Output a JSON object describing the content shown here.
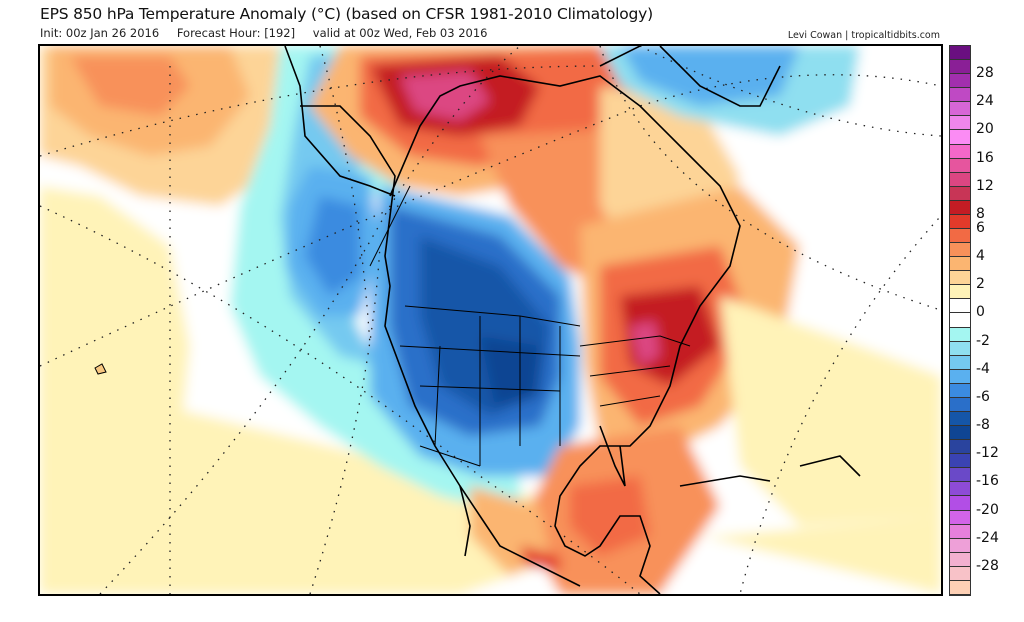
{
  "header": {
    "title": "EPS 850 hPa Temperature Anomaly (°C) (based on CFSR 1981-2010 Climatology)",
    "init": "Init: 00z Jan 26 2016",
    "forecast_hour": "Forecast Hour: [192]",
    "valid": "valid at 00z Wed, Feb 03 2016",
    "credit": "Levi Cowan | tropicaltidbits.com"
  },
  "map": {
    "projection": "polar-stereographic North America",
    "features": [
      "coastlines",
      "country-borders",
      "state-borders",
      "lat-lon-grid"
    ],
    "anomaly_regions": [
      {
        "name": "Alaska/Yukon warm anomaly",
        "peak": 14
      },
      {
        "name": "Western/Central US cold anomaly",
        "peak": -9
      },
      {
        "name": "Northeast Pacific cold anomaly",
        "peak": -7
      },
      {
        "name": "Eastern US warm anomaly",
        "peak": 10
      },
      {
        "name": "Gulf of Mexico warm anomaly",
        "peak": 6
      },
      {
        "name": "Greenland cold anomaly",
        "peak": -4
      }
    ]
  },
  "colorbar": {
    "bins": [
      {
        "color": "#6a0f80"
      },
      {
        "color": "#8a1f96"
      },
      {
        "color": "#a22fae"
      },
      {
        "color": "#bf49c4"
      },
      {
        "color": "#d766d6"
      },
      {
        "color": "#ef86ec"
      },
      {
        "color": "#fb8cf4"
      },
      {
        "color": "#f468c9"
      },
      {
        "color": "#e6559e"
      },
      {
        "color": "#dc4682"
      },
      {
        "color": "#c83556"
      },
      {
        "color": "#c41c24"
      },
      {
        "color": "#e33a2a"
      },
      {
        "color": "#f26a44"
      },
      {
        "color": "#f8915a"
      },
      {
        "color": "#fbb571"
      },
      {
        "color": "#fdd497"
      },
      {
        "color": "#fff3b8"
      },
      {
        "color": "#ffffff"
      },
      {
        "color": "#ffffff"
      },
      {
        "color": "#a4f6f1"
      },
      {
        "color": "#8fdff0"
      },
      {
        "color": "#74c9f0"
      },
      {
        "color": "#5ab0ef"
      },
      {
        "color": "#3b8be0"
      },
      {
        "color": "#2a6fc9"
      },
      {
        "color": "#1556a8"
      },
      {
        "color": "#0f4593"
      },
      {
        "color": "#2a449e"
      },
      {
        "color": "#3a43b3"
      },
      {
        "color": "#6a49c8"
      },
      {
        "color": "#8e4bd6"
      },
      {
        "color": "#b24ee6"
      },
      {
        "color": "#d264e8"
      },
      {
        "color": "#e680dc"
      },
      {
        "color": "#eea0d8"
      },
      {
        "color": "#f3b0d0"
      },
      {
        "color": "#f8c2c8"
      },
      {
        "color": "#fdd0b5"
      }
    ],
    "labels": [
      "28",
      "24",
      "20",
      "16",
      "12",
      "8",
      "6",
      "4",
      "2",
      "0",
      "-2",
      "-4",
      "-6",
      "-8",
      "-12",
      "-16",
      "-20",
      "-24",
      "-28"
    ],
    "unit": "°C"
  }
}
